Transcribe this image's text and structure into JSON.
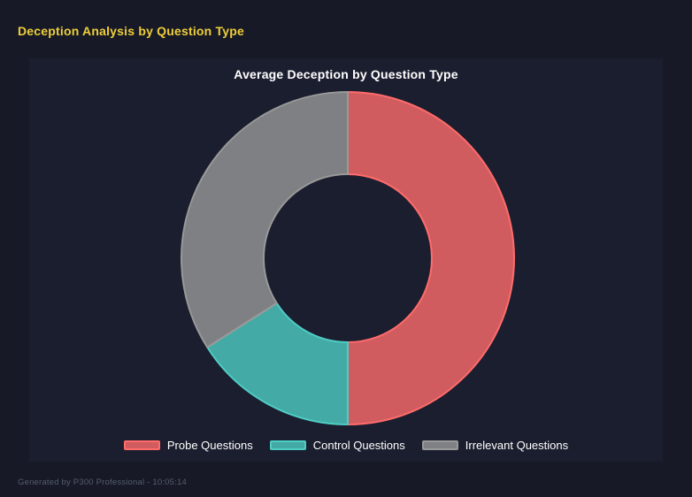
{
  "page": {
    "title": "Deception Analysis by Question Type",
    "title_color": "#EFCE3A",
    "background": "#171A26",
    "footer": "Generated by P300 Professional - 10:05:14",
    "footer_color": "#565B6C"
  },
  "panel": {
    "background": "#1B1E2E"
  },
  "chart_data": {
    "type": "pie",
    "subtype": "doughnut",
    "title": "Average Deception by Question Type",
    "title_color": "#FFFFFF",
    "start_angle_deg": 0,
    "direction": "clockwise",
    "cutout_percent": 50,
    "legend_position": "bottom",
    "categories": [
      "Probe Questions",
      "Control Questions",
      "Irrelevant Questions"
    ],
    "values": [
      50,
      16,
      34
    ],
    "unit": "percent of circle",
    "segments": [
      {
        "label": "Probe Questions",
        "value": 50,
        "fill": "rgba(255,107,107,0.8)",
        "border": "#FF6B6B"
      },
      {
        "label": "Control Questions",
        "value": 16,
        "fill": "rgba(78,205,196,0.8)",
        "border": "#4ECDC4"
      },
      {
        "label": "Irrelevant Questions",
        "value": 34,
        "fill": "rgba(153,153,153,0.8)",
        "border": "#999999"
      }
    ]
  }
}
